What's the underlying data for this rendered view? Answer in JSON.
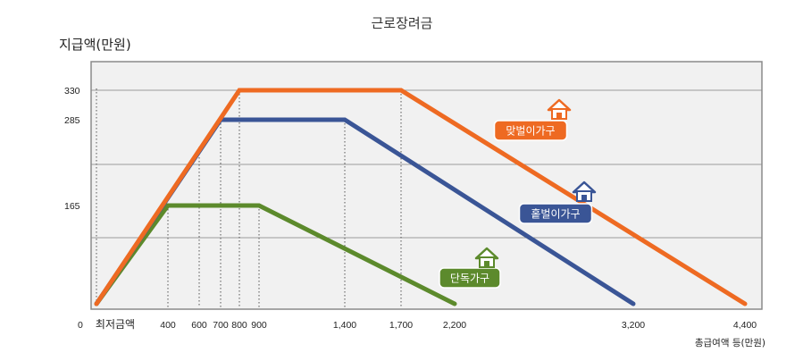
{
  "chart_data": {
    "type": "line",
    "title": "근로장려금",
    "ylabel": "지급액(만원)",
    "xlabel": "총급여액 등(만원)",
    "x_origin_label": "0",
    "x_min_label": "최저금액",
    "x_ticks": [
      400,
      600,
      700,
      800,
      900,
      1400,
      1700,
      2200,
      3200,
      4400
    ],
    "x_tick_labels": [
      "400",
      "600",
      "700",
      "800",
      "900",
      "1,400",
      "1,700",
      "2,200",
      "3,200",
      "4,400"
    ],
    "y_ticks": [
      165,
      285,
      330
    ],
    "y_tick_labels": [
      "165",
      "285",
      "330"
    ],
    "xlim": [
      0,
      4500
    ],
    "ylim": [
      0,
      370
    ],
    "grid": true,
    "series": [
      {
        "name": "맞벌이가구",
        "color": "#EE6A22",
        "icon": "house-icon",
        "x": [
          0,
          800,
          1700,
          4400
        ],
        "y": [
          0,
          330,
          330,
          0
        ]
      },
      {
        "name": "홑벌이가구",
        "color": "#3A5596",
        "icon": "house-icon",
        "x": [
          0,
          700,
          1400,
          3200
        ],
        "y": [
          0,
          285,
          285,
          0
        ]
      },
      {
        "name": "단독가구",
        "color": "#5C8A2C",
        "icon": "house-icon",
        "x": [
          0,
          400,
          900,
          2200
        ],
        "y": [
          0,
          165,
          165,
          0
        ]
      }
    ]
  }
}
